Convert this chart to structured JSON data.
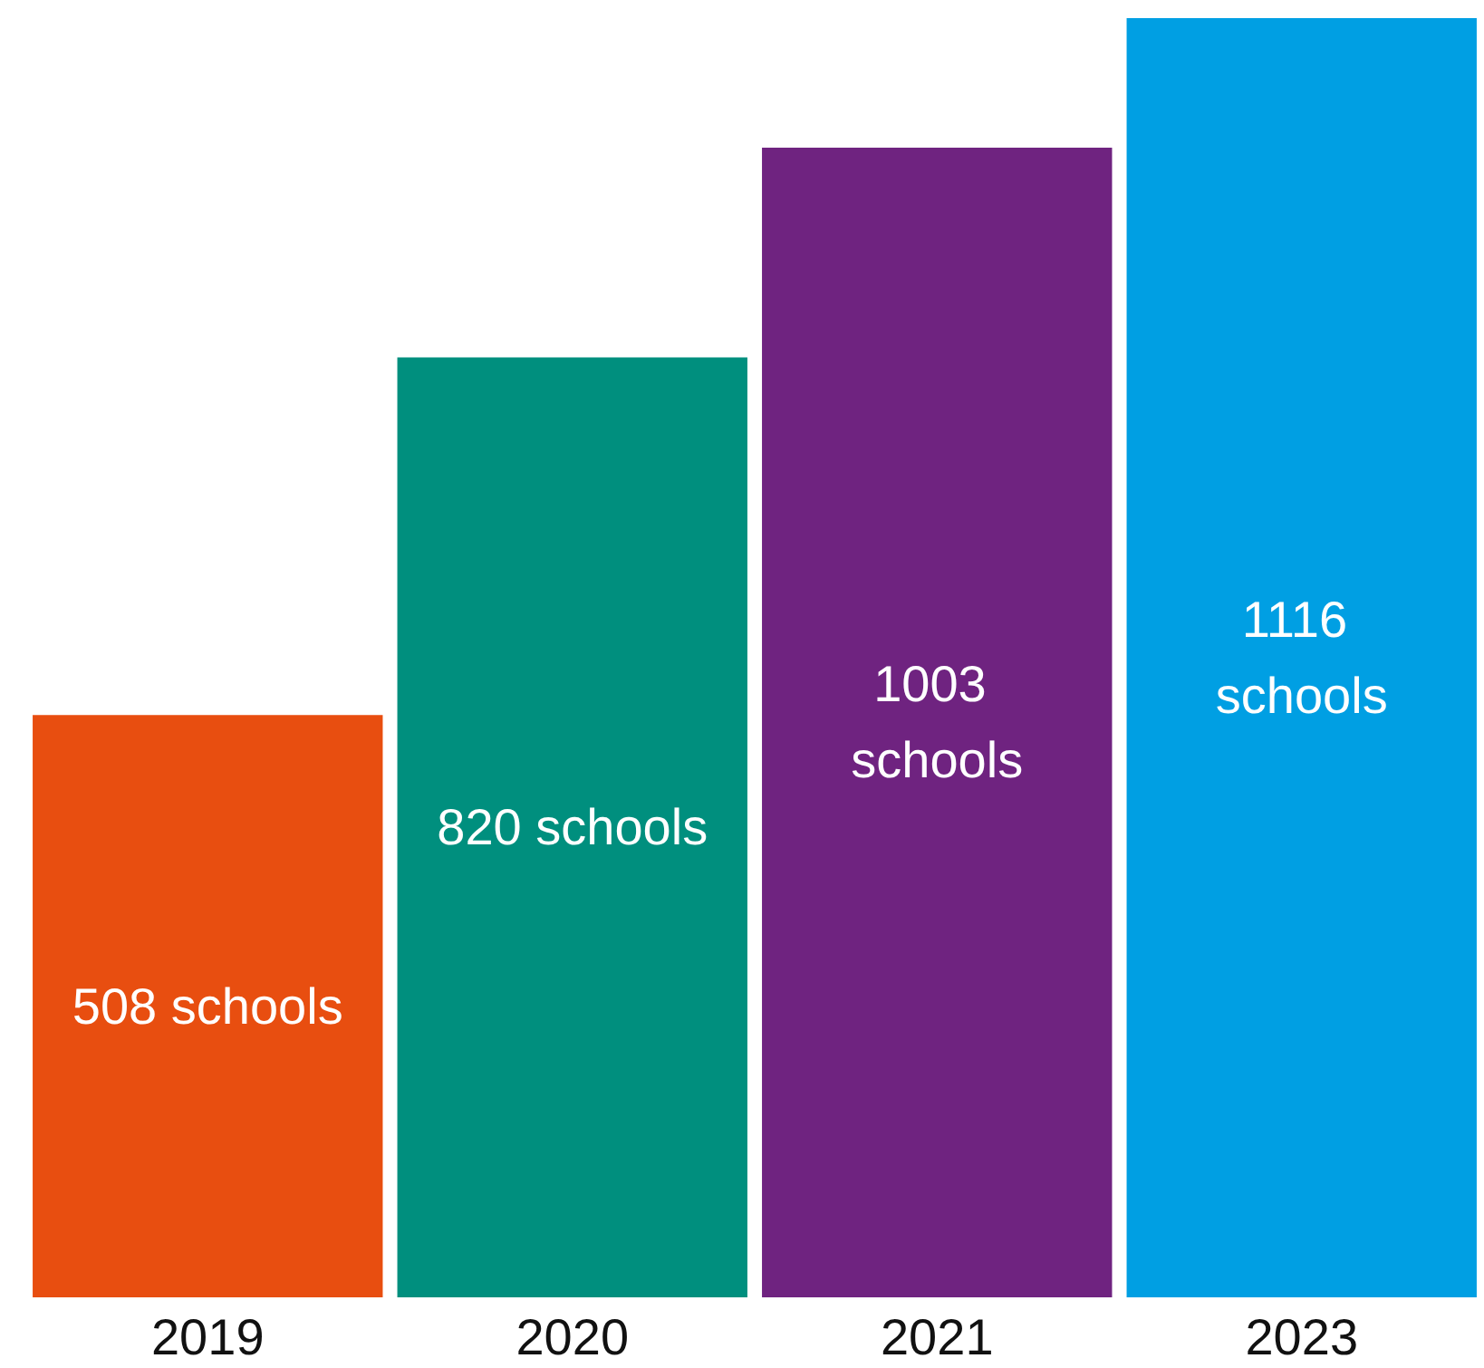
{
  "chart_data": {
    "type": "bar",
    "categories": [
      "2019",
      "2020",
      "2021",
      "2023"
    ],
    "values": [
      508,
      820,
      1003,
      1116
    ],
    "colors": [
      "#e84e10",
      "#008f7e",
      "#6f2380",
      "#009fe3"
    ],
    "value_labels": [
      "508 schools",
      "820 schools",
      "1003 schools",
      "1116 schools"
    ]
  }
}
